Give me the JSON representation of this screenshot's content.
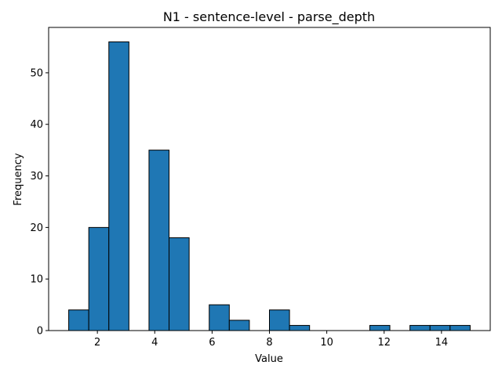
{
  "chart_data": {
    "type": "bar",
    "title": "N1 - sentence-level - parse_depth",
    "xlabel": "Value",
    "ylabel": "Frequency",
    "xlim": [
      0.3,
      15.7
    ],
    "ylim": [
      0,
      58.8
    ],
    "xticks": [
      2,
      4,
      6,
      8,
      10,
      12,
      14
    ],
    "yticks": [
      0,
      10,
      20,
      30,
      40,
      50
    ],
    "bin_edges": [
      1.0,
      1.7,
      2.4,
      3.1,
      3.8,
      4.5,
      5.2,
      5.9,
      6.6,
      7.3,
      8.0,
      8.7,
      9.4,
      10.1,
      10.8,
      11.5,
      12.2,
      12.9,
      13.6,
      14.3,
      15.0
    ],
    "values": [
      4,
      20,
      56,
      0,
      35,
      18,
      0,
      5,
      2,
      0,
      4,
      1,
      0,
      0,
      0,
      1,
      0,
      1,
      1,
      1
    ],
    "bar_color": "#1f77b4",
    "edge_color": "#000000",
    "grid": false,
    "legend": false
  }
}
